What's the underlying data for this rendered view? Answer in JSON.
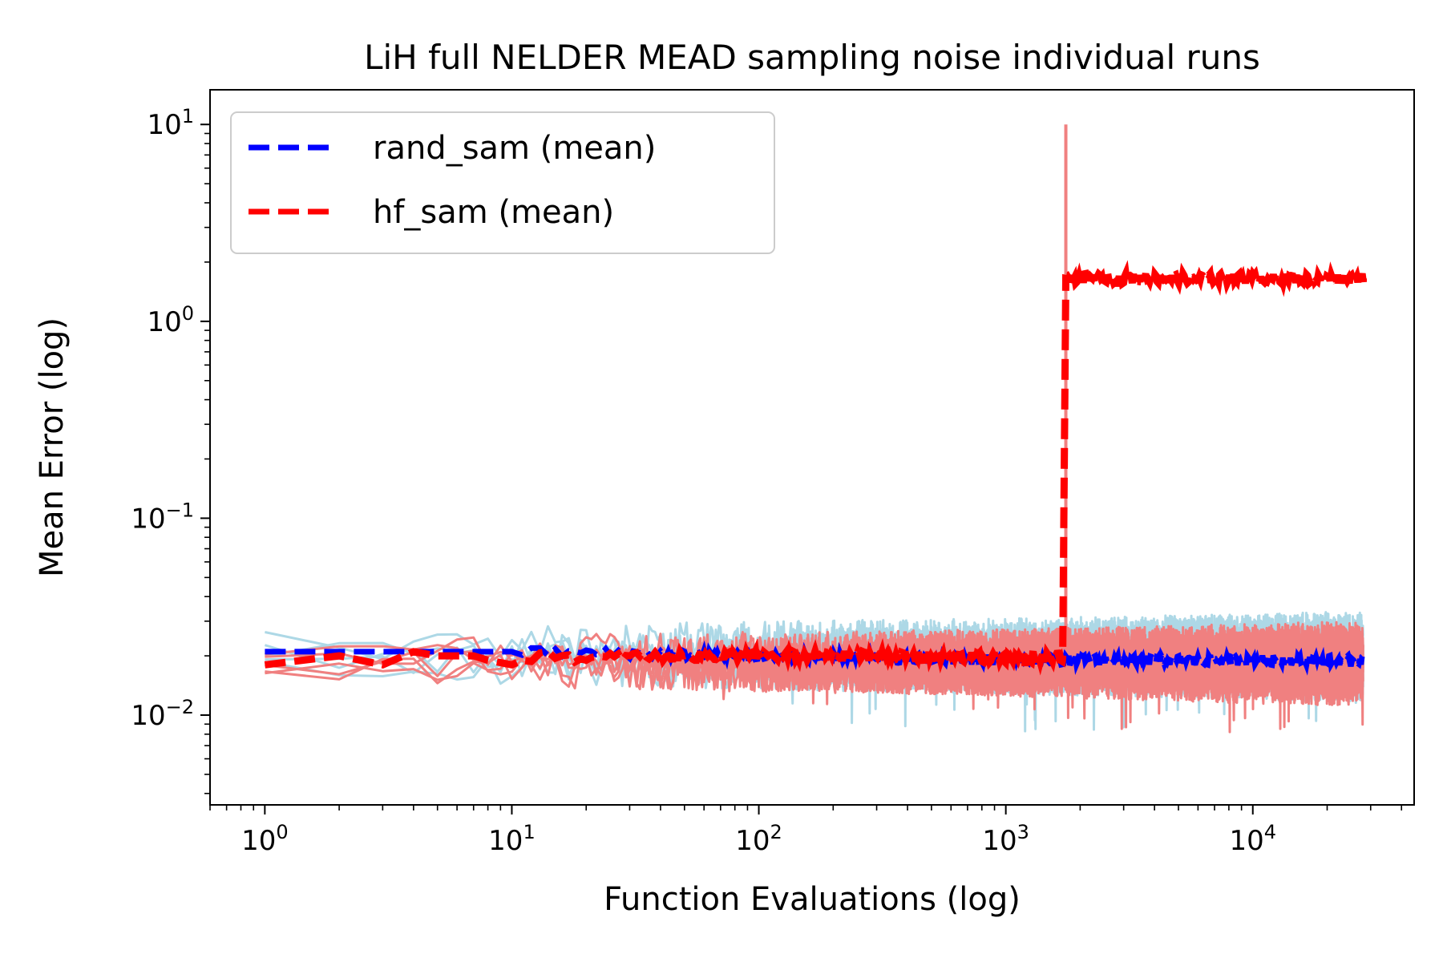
{
  "chart_data": {
    "type": "line",
    "title": "LiH full NELDER MEAD sampling noise individual runs",
    "xlabel": "Function Evaluations (log)",
    "ylabel": "Mean Error (log)",
    "xscale": "log",
    "yscale": "log",
    "xlim": [
      0.6,
      45000
    ],
    "ylim": [
      0.0035,
      15
    ],
    "x_ticks": [
      {
        "base": "10",
        "exp": "0",
        "value": 1
      },
      {
        "base": "10",
        "exp": "1",
        "value": 10
      },
      {
        "base": "10",
        "exp": "2",
        "value": 100
      },
      {
        "base": "10",
        "exp": "3",
        "value": 1000
      },
      {
        "base": "10",
        "exp": "4",
        "value": 10000
      }
    ],
    "y_ticks": [
      {
        "base": "10",
        "exp": "1",
        "value": 10
      },
      {
        "base": "10",
        "exp": "0",
        "value": 1
      },
      {
        "base": "10",
        "exp": "−1",
        "value": 0.1
      },
      {
        "base": "10",
        "exp": "−2",
        "value": 0.01
      }
    ],
    "legend": {
      "placement": "top-left",
      "entries": [
        {
          "label": "rand_sam (mean)",
          "color": "#0000ff",
          "style": "dashed"
        },
        {
          "label": "hf_sam (mean)",
          "color": "#ff0000",
          "style": "dashed"
        }
      ]
    },
    "series": [
      {
        "name": "rand_sam (individual runs)",
        "color": "#add8e6",
        "style": "solid",
        "description": "5 noisy runs fluctuating between ~0.01 and ~0.035 over 1 to 28000 evaluations",
        "x_range": [
          1,
          28000
        ],
        "y_band": [
          0.008,
          0.035
        ]
      },
      {
        "name": "hf_sam (individual runs)",
        "color": "#f08080",
        "style": "solid",
        "description": "5 noisy runs fluctuating between ~0.009 and ~0.032; spike to ~10 at ~1750 evaluations",
        "x_range": [
          1,
          28000
        ],
        "y_band": [
          0.009,
          0.032
        ],
        "spike": {
          "x": 1750,
          "y": 10
        }
      },
      {
        "name": "rand_sam (mean)",
        "color": "#0000ff",
        "style": "dashed",
        "x": [
          1,
          2,
          5,
          10,
          100,
          1000,
          10000,
          28000
        ],
        "y": [
          0.021,
          0.021,
          0.021,
          0.021,
          0.02,
          0.019,
          0.019,
          0.019
        ]
      },
      {
        "name": "hf_sam (mean)",
        "color": "#ff0000",
        "style": "dashed",
        "x": [
          1,
          2,
          3,
          4,
          5,
          6,
          7,
          8,
          10,
          14,
          20,
          30,
          50,
          100,
          300,
          1000,
          1700,
          1750,
          28000
        ],
        "y": [
          0.018,
          0.02,
          0.018,
          0.021,
          0.02,
          0.02,
          0.02,
          0.019,
          0.018,
          0.021,
          0.019,
          0.02,
          0.02,
          0.02,
          0.02,
          0.0195,
          0.0195,
          1.65,
          1.65
        ]
      }
    ]
  }
}
